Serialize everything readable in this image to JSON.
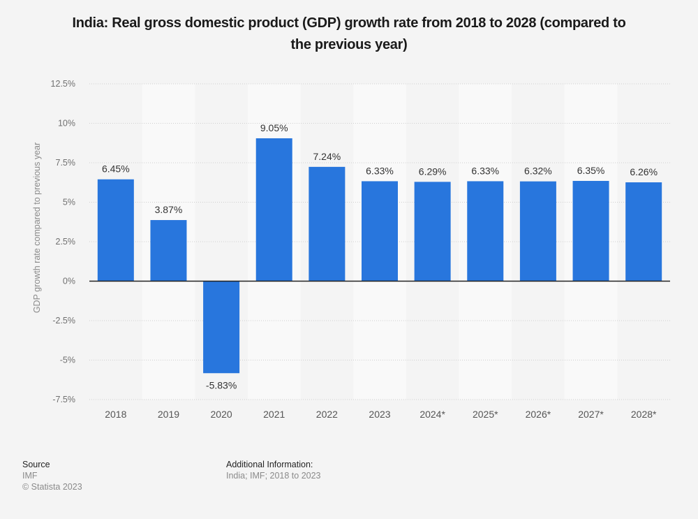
{
  "chart_data": {
    "type": "bar",
    "title": "India: Real gross domestic product (GDP) growth rate from 2018 to 2028 (compared to the previous year)",
    "title_lines": [
      "India: Real gross domestic product (GDP) growth rate from 2018 to 2028 (compared to",
      "the previous year)"
    ],
    "xlabel": "",
    "ylabel": "GDP growth rate compared to previous year",
    "categories": [
      "2018",
      "2019",
      "2020",
      "2021",
      "2022",
      "2023",
      "2024*",
      "2025*",
      "2026*",
      "2027*",
      "2028*"
    ],
    "values": [
      6.45,
      3.87,
      -5.83,
      9.05,
      7.24,
      6.33,
      6.29,
      6.33,
      6.32,
      6.35,
      6.26
    ],
    "value_labels": [
      "6.45%",
      "3.87%",
      "-5.83%",
      "9.05%",
      "7.24%",
      "6.33%",
      "6.29%",
      "6.33%",
      "6.32%",
      "6.35%",
      "6.26%"
    ],
    "ylim": [
      -7.5,
      12.5
    ],
    "yticks": [
      12.5,
      10,
      7.5,
      5,
      2.5,
      0,
      -2.5,
      -5,
      -7.5
    ],
    "ytick_labels": [
      "12.5%",
      "10%",
      "7.5%",
      "5%",
      "2.5%",
      "0%",
      "-2.5%",
      "-5%",
      "-7.5%"
    ],
    "grid": true,
    "legend": "none",
    "bar_color": "#2876dd"
  },
  "footer": {
    "source_heading": "Source",
    "source_lines": [
      "IMF",
      "© Statista 2023"
    ],
    "additional_heading": "Additional Information:",
    "additional_text": "India; IMF; 2018 to 2023"
  }
}
